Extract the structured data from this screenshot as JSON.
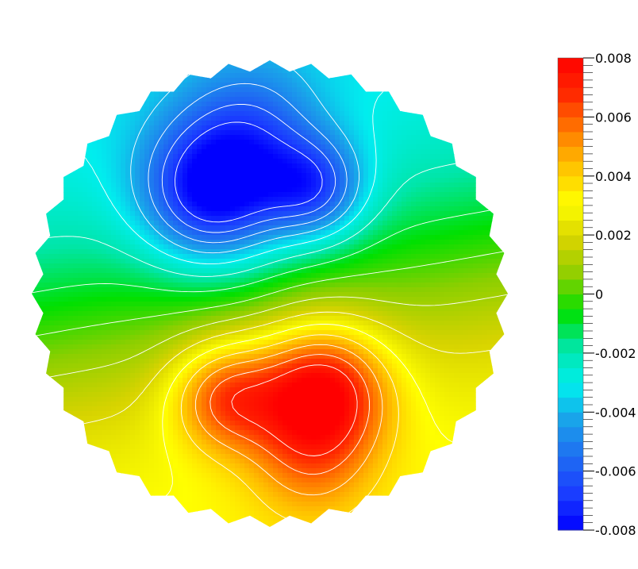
{
  "chart_data": {
    "type": "heatmap",
    "title": "",
    "xlabel": "",
    "ylabel": "",
    "colorbar": {
      "min": -0.008,
      "max": 0.008,
      "levels": 32,
      "colors": [
        "#0000ff",
        "#1a3cff",
        "#1f6cf2",
        "#1aa0ea",
        "#00eeee",
        "#00e6aa",
        "#00e000",
        "#8ccf00",
        "#d7d300",
        "#ffff00",
        "#ffc300",
        "#ff7a00",
        "#ff2a00",
        "#ff0000"
      ],
      "tick_values": [
        0.008,
        0.006,
        0.004,
        0.002,
        0,
        -0.002,
        -0.004,
        -0.006,
        -0.008
      ],
      "tick_labels": [
        "0.008",
        "0.006",
        "0.004",
        "0.002",
        "0",
        "-0.002",
        "-0.004",
        "-0.006",
        "-0.008"
      ]
    },
    "field": {
      "domain": "circular (hexagonal-mesh edge)",
      "contour_lines": "white",
      "extrema": [
        {
          "kind": "min",
          "value": -0.008,
          "region": "upper-left lobe"
        },
        {
          "kind": "min",
          "value": -0.0072,
          "region": "upper-right lobe"
        },
        {
          "kind": "max",
          "value": 0.0079,
          "region": "lower-right lobe"
        },
        {
          "kind": "max",
          "value": 0.0066,
          "region": "lower-left lobe"
        }
      ]
    }
  }
}
